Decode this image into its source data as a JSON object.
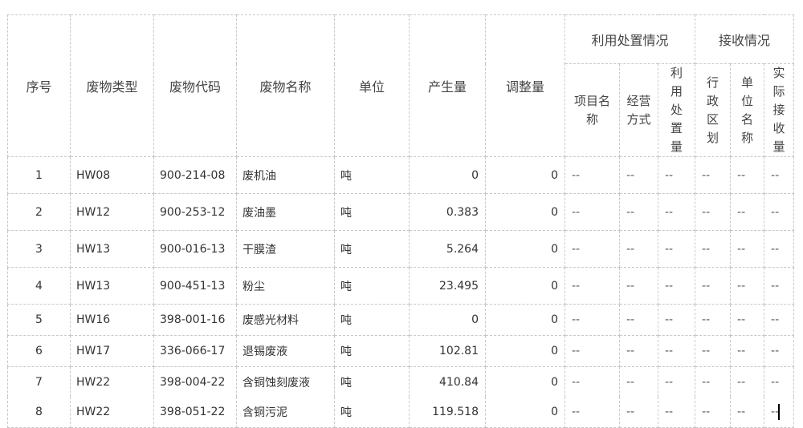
{
  "headers": {
    "seq": "序号",
    "type": "废物类型",
    "code": "废物代码",
    "name": "废物名称",
    "unit": "单位",
    "produced": "产生量",
    "adjust": "调整量",
    "disposal_group": "利用处置情况",
    "receive_group": "接收情况",
    "project_name": "项目名称",
    "operation_mode": "经营方式",
    "disposal_amount": "利用处置量",
    "region": "行政区划",
    "unit_name": "单位名称",
    "actual_received": "实际接收量"
  },
  "rows": [
    {
      "seq": "1",
      "type": "HW08",
      "code": "900-214-08",
      "name": "废机油",
      "unit": "吨",
      "produced": "0",
      "adjust": "0",
      "project_name": "--",
      "operation_mode": "--",
      "disposal_amount": "--",
      "region": "--",
      "unit_name": "--",
      "actual_received": "--"
    },
    {
      "seq": "2",
      "type": "HW12",
      "code": "900-253-12",
      "name": "废油墨",
      "unit": "吨",
      "produced": "0.383",
      "adjust": "0",
      "project_name": "--",
      "operation_mode": "--",
      "disposal_amount": "--",
      "region": "--",
      "unit_name": "--",
      "actual_received": "--"
    },
    {
      "seq": "3",
      "type": "HW13",
      "code": "900-016-13",
      "name": "干膜渣",
      "unit": "吨",
      "produced": "5.264",
      "adjust": "0",
      "project_name": "--",
      "operation_mode": "--",
      "disposal_amount": "--",
      "region": "--",
      "unit_name": "--",
      "actual_received": "--"
    },
    {
      "seq": "4",
      "type": "HW13",
      "code": "900-451-13",
      "name": "粉尘",
      "unit": "吨",
      "produced": "23.495",
      "adjust": "0",
      "project_name": "--",
      "operation_mode": "--",
      "disposal_amount": "--",
      "region": "--",
      "unit_name": "--",
      "actual_received": "--"
    },
    {
      "seq": "5",
      "type": "HW16",
      "code": "398-001-16",
      "name": "废感光材料",
      "unit": "吨",
      "produced": "0",
      "adjust": "0",
      "project_name": "--",
      "operation_mode": "--",
      "disposal_amount": "--",
      "region": "--",
      "unit_name": "--",
      "actual_received": "--"
    },
    {
      "seq": "6",
      "type": "HW17",
      "code": "336-066-17",
      "name": "退锡废液",
      "unit": "吨",
      "produced": "102.81",
      "adjust": "0",
      "project_name": "--",
      "operation_mode": "--",
      "disposal_amount": "--",
      "region": "--",
      "unit_name": "--",
      "actual_received": "--"
    },
    {
      "seq": "7",
      "type": "HW22",
      "code": "398-004-22",
      "name": "含铜蚀刻废液",
      "unit": "吨",
      "produced": "410.84",
      "adjust": "0",
      "project_name": "--",
      "operation_mode": "--",
      "disposal_amount": "--",
      "region": "--",
      "unit_name": "--",
      "actual_received": "--"
    },
    {
      "seq": "8",
      "type": "HW22",
      "code": "398-051-22",
      "name": "含铜污泥",
      "unit": "吨",
      "produced": "119.518",
      "adjust": "0",
      "project_name": "--",
      "operation_mode": "--",
      "disposal_amount": "--",
      "region": "--",
      "unit_name": "--",
      "actual_received": "--"
    }
  ]
}
